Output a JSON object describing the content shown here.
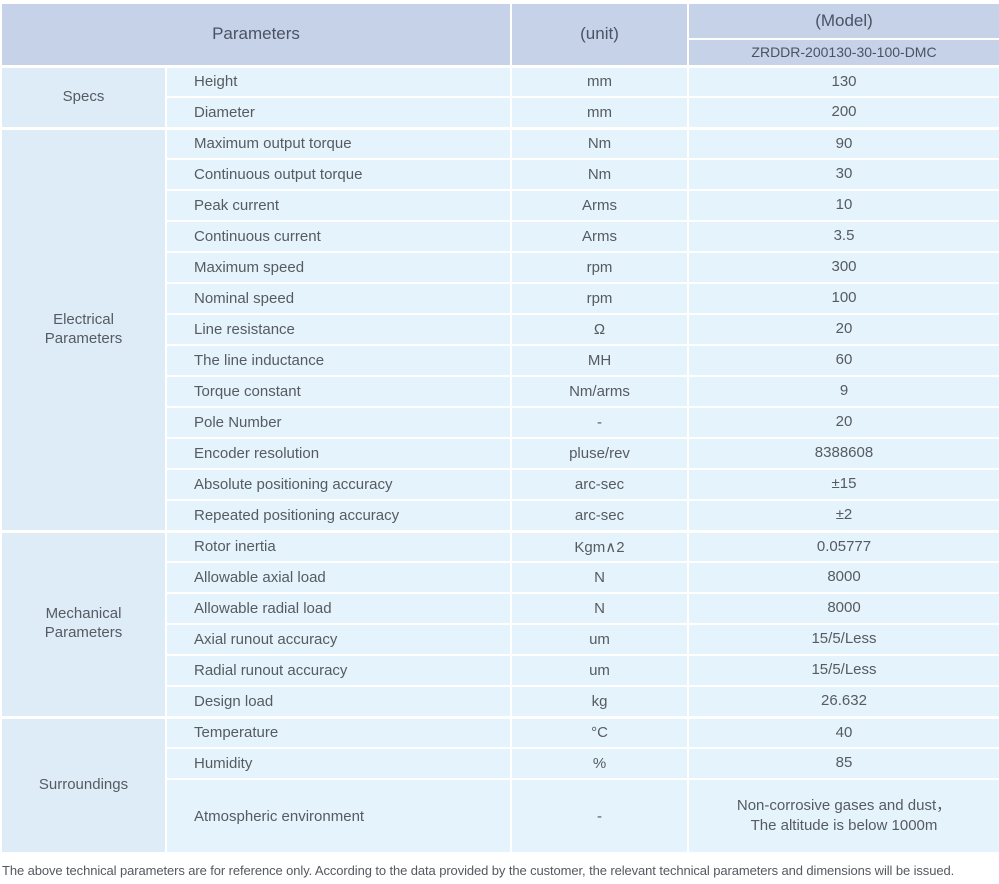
{
  "colors": {
    "header_bg": "#c6d2e8",
    "header_text": "#4a5364",
    "row_bg": "#e5f3fc",
    "section_bg": "#deecf8",
    "body_text": "#565b61",
    "footnote_text": "#55595e"
  },
  "table": {
    "header": {
      "parameters": "Parameters",
      "unit": "(unit)",
      "model": "(Model)",
      "model_value": "ZRDDR-200130-30-100-DMC"
    },
    "sections": [
      {
        "name": "Specs",
        "rows": [
          {
            "parameter": "Height",
            "unit": "mm",
            "value": "130"
          },
          {
            "parameter": "Diameter",
            "unit": "mm",
            "value": "200"
          }
        ]
      },
      {
        "name": "Electrical\nParameters",
        "rows": [
          {
            "parameter": "Maximum output torque",
            "unit": "Nm",
            "value": "90"
          },
          {
            "parameter": "Continuous output torque",
            "unit": "Nm",
            "value": "30"
          },
          {
            "parameter": "Peak current",
            "unit": "Arms",
            "value": "10"
          },
          {
            "parameter": "Continuous current",
            "unit": "Arms",
            "value": "3.5"
          },
          {
            "parameter": "Maximum speed",
            "unit": "rpm",
            "value": "300"
          },
          {
            "parameter": "Nominal speed",
            "unit": "rpm",
            "value": "100"
          },
          {
            "parameter": "Line resistance",
            "unit": "Ω",
            "value": "20"
          },
          {
            "parameter": "The line inductance",
            "unit": "MH",
            "value": "60"
          },
          {
            "parameter": "Torque constant",
            "unit": "Nm/arms",
            "value": "9"
          },
          {
            "parameter": "Pole Number",
            "unit": "-",
            "value": "20"
          },
          {
            "parameter": "Encoder resolution",
            "unit": "pluse/rev",
            "value": "8388608"
          },
          {
            "parameter": "Absolute positioning accuracy",
            "unit": "arc-sec",
            "value": "±15"
          },
          {
            "parameter": "Repeated positioning accuracy",
            "unit": "arc-sec",
            "value": "±2"
          }
        ]
      },
      {
        "name": "Mechanical\nParameters",
        "rows": [
          {
            "parameter": "Rotor inertia",
            "unit": "Kgm∧2",
            "value": "0.05777"
          },
          {
            "parameter": "Allowable axial load",
            "unit": "N",
            "value": "8000"
          },
          {
            "parameter": "Allowable radial load",
            "unit": "N",
            "value": "8000"
          },
          {
            "parameter": "Axial runout accuracy",
            "unit": "um",
            "value": "15/5/Less"
          },
          {
            "parameter": "Radial runout accuracy",
            "unit": "um",
            "value": "15/5/Less"
          },
          {
            "parameter": "Design load",
            "unit": "kg",
            "value": "26.632"
          }
        ]
      },
      {
        "name": "Surroundings",
        "rows": [
          {
            "parameter": "Temperature",
            "unit": "°C",
            "value": "40"
          },
          {
            "parameter": "Humidity",
            "unit": "%",
            "value": "85"
          },
          {
            "parameter": "Atmospheric environment",
            "unit": "-",
            "value": "Non-corrosive gases and dust，\nThe altitude is below 1000m",
            "tall": true
          }
        ]
      }
    ]
  },
  "footnote": "The above technical parameters are for reference only. According to the data provided by the customer, the relevant technical parameters and dimensions will be issued."
}
